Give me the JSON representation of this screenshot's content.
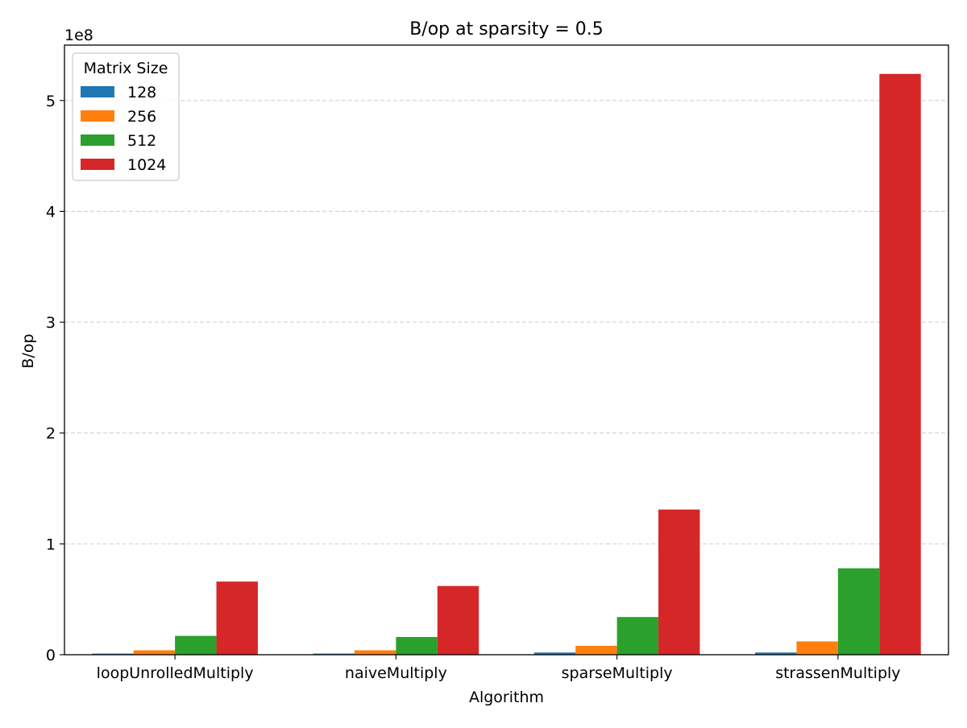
{
  "chart_data": {
    "type": "bar",
    "title": "B/op at sparsity = 0.5",
    "xlabel": "Algorithm",
    "ylabel": "B/op",
    "y_offset_label": "1e8",
    "y_scale": 100000000,
    "ylim": [
      0,
      550000000
    ],
    "yticks": [
      0,
      100000000,
      200000000,
      300000000,
      400000000,
      500000000
    ],
    "ytick_labels": [
      "0",
      "1",
      "2",
      "3",
      "4",
      "5"
    ],
    "grid": "y-dashed",
    "legend": {
      "title": "Matrix Size",
      "placement": "top-left"
    },
    "categories": [
      "loopUnrolledMultiply",
      "naiveMultiply",
      "sparseMultiply",
      "strassenMultiply"
    ],
    "series": [
      {
        "name": "128",
        "color": "#1f77b4",
        "values": [
          1000000,
          1000000,
          2000000,
          2000000
        ]
      },
      {
        "name": "256",
        "color": "#ff7f0e",
        "values": [
          4000000,
          4000000,
          8000000,
          12000000
        ]
      },
      {
        "name": "512",
        "color": "#2ca02c",
        "values": [
          17000000,
          16000000,
          34000000,
          78000000
        ]
      },
      {
        "name": "1024",
        "color": "#d62728",
        "values": [
          66000000,
          62000000,
          131000000,
          524000000
        ]
      }
    ]
  }
}
